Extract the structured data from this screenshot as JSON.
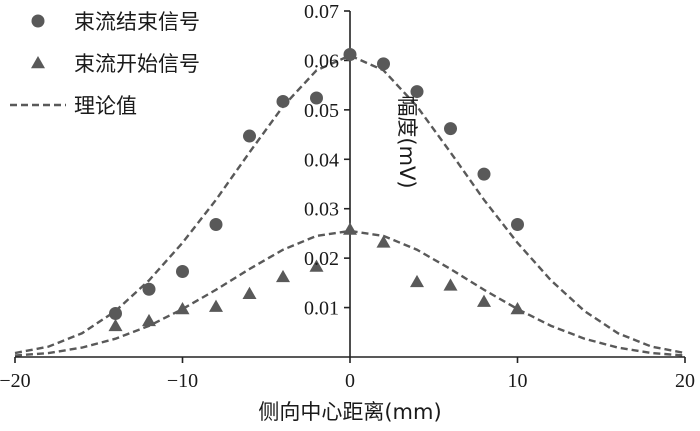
{
  "chart_data": {
    "type": "scatter",
    "xlabel": "侧向中心距离(mm)",
    "ylabel": "幅度(mV)",
    "xlim": [
      -20,
      20
    ],
    "ylim": [
      0,
      0.07
    ],
    "x_ticks": [
      -20,
      -10,
      0,
      10,
      20
    ],
    "y_ticks": [
      0.01,
      0.02,
      0.03,
      0.04,
      0.05,
      0.06,
      0.07
    ],
    "x_tick_labels": [
      "−20",
      "−10",
      "0",
      "10",
      "20"
    ],
    "y_tick_labels": [
      "0.01",
      "0.02",
      "0.03",
      "0.04",
      "0.05",
      "0.06",
      "0.07"
    ],
    "grid": false,
    "legend_position": "top-left",
    "series": [
      {
        "name": "束流结束信号",
        "kind": "points",
        "marker": "circle",
        "color": "#595959",
        "x": [
          -14,
          -12,
          -10,
          -8,
          -6,
          -4,
          -2,
          0,
          2,
          4,
          6,
          8,
          10
        ],
        "y": [
          0.0088,
          0.0137,
          0.0173,
          0.0268,
          0.0447,
          0.0517,
          0.0524,
          0.0612,
          0.0593,
          0.0537,
          0.0462,
          0.037,
          0.0268
        ]
      },
      {
        "name": "束流开始信号",
        "kind": "points",
        "marker": "triangle",
        "color": "#595959",
        "x": [
          -14,
          -12,
          -10,
          -8,
          -6,
          -4,
          -2,
          0,
          2,
          4,
          6,
          8,
          10
        ],
        "y": [
          0.0063,
          0.0073,
          0.0097,
          0.0102,
          0.0128,
          0.0162,
          0.0183,
          0.0258,
          0.0232,
          0.0152,
          0.0145,
          0.0112,
          0.0097
        ]
      },
      {
        "name": "理论值",
        "kind": "line",
        "style": "dashed",
        "color": "#595959",
        "x": [
          -20,
          -18,
          -16,
          -14,
          -12,
          -10,
          -8,
          -6,
          -4,
          -2,
          0,
          2,
          4,
          6,
          8,
          10,
          12,
          14,
          16,
          18,
          20
        ],
        "y": [
          0.0008,
          0.0021,
          0.0048,
          0.0093,
          0.0155,
          0.0231,
          0.0318,
          0.0414,
          0.0507,
          0.058,
          0.061,
          0.058,
          0.0507,
          0.0414,
          0.0318,
          0.0231,
          0.0155,
          0.0093,
          0.0048,
          0.0021,
          0.0008
        ]
      },
      {
        "kind": "line",
        "style": "dashed",
        "color": "#595959",
        "x": [
          -20,
          -18,
          -16,
          -14,
          -12,
          -10,
          -8,
          -6,
          -4,
          -2,
          0,
          2,
          4,
          6,
          8,
          10,
          12,
          14,
          16,
          18,
          20
        ],
        "y": [
          0.0003,
          0.0008,
          0.0019,
          0.0037,
          0.0063,
          0.0097,
          0.0136,
          0.0178,
          0.0217,
          0.0245,
          0.0255,
          0.0245,
          0.0217,
          0.0178,
          0.0136,
          0.0097,
          0.0063,
          0.0037,
          0.0019,
          0.0008,
          0.0003
        ]
      }
    ]
  }
}
